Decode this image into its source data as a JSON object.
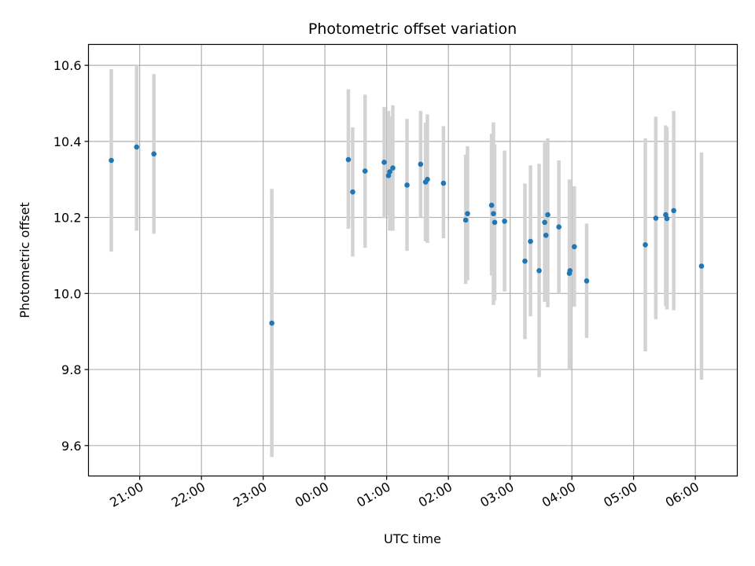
{
  "chart_data": {
    "type": "scatter",
    "title": "Photometric offset variation",
    "xlabel": "UTC time",
    "ylabel": "Photometric offset",
    "x_unit": "UTC clock time (hours past midnight; negative = previous evening)",
    "xlim": [
      -3.83,
      6.68
    ],
    "ylim": [
      9.52,
      10.655
    ],
    "x_ticks": [
      {
        "value": -3,
        "label": "21:00"
      },
      {
        "value": -2,
        "label": "22:00"
      },
      {
        "value": -1,
        "label": "23:00"
      },
      {
        "value": 0,
        "label": "00:00"
      },
      {
        "value": 1,
        "label": "01:00"
      },
      {
        "value": 2,
        "label": "02:00"
      },
      {
        "value": 3,
        "label": "03:00"
      },
      {
        "value": 4,
        "label": "04:00"
      },
      {
        "value": 5,
        "label": "05:00"
      },
      {
        "value": 6,
        "label": "06:00"
      }
    ],
    "y_ticks": [
      {
        "value": 9.6,
        "label": "9.6"
      },
      {
        "value": 9.8,
        "label": "9.8"
      },
      {
        "value": 10.0,
        "label": "10.0"
      },
      {
        "value": 10.2,
        "label": "10.2"
      },
      {
        "value": 10.4,
        "label": "10.4"
      },
      {
        "value": 10.6,
        "label": "10.6"
      }
    ],
    "grid": true,
    "colors": {
      "point": "#1f77b4",
      "errorbar": "#d3d3d3",
      "grid": "#b0b0b0",
      "axes": "#000000"
    },
    "points": [
      {
        "x": -3.46,
        "y": 10.35,
        "ylo": 10.11,
        "yhi": 10.59
      },
      {
        "x": -3.05,
        "y": 10.385,
        "ylo": 10.165,
        "yhi": 10.6
      },
      {
        "x": -2.77,
        "y": 10.367,
        "ylo": 10.157,
        "yhi": 10.577
      },
      {
        "x": -0.86,
        "y": 9.922,
        "ylo": 9.57,
        "yhi": 10.275
      },
      {
        "x": 0.38,
        "y": 10.352,
        "ylo": 10.17,
        "yhi": 10.537
      },
      {
        "x": 0.45,
        "y": 10.267,
        "ylo": 10.097,
        "yhi": 10.437
      },
      {
        "x": 0.65,
        "y": 10.322,
        "ylo": 10.12,
        "yhi": 10.523
      },
      {
        "x": 0.96,
        "y": 10.345,
        "ylo": 10.198,
        "yhi": 10.49
      },
      {
        "x": 1.03,
        "y": 10.31,
        "ylo": 10.205,
        "yhi": 10.48
      },
      {
        "x": 1.05,
        "y": 10.32,
        "ylo": 10.165,
        "yhi": 10.465
      },
      {
        "x": 1.1,
        "y": 10.33,
        "ylo": 10.165,
        "yhi": 10.495
      },
      {
        "x": 1.33,
        "y": 10.285,
        "ylo": 10.112,
        "yhi": 10.459
      },
      {
        "x": 1.55,
        "y": 10.34,
        "ylo": 10.2,
        "yhi": 10.48
      },
      {
        "x": 1.63,
        "y": 10.293,
        "ylo": 10.137,
        "yhi": 10.449
      },
      {
        "x": 1.66,
        "y": 10.3,
        "ylo": 10.133,
        "yhi": 10.471
      },
      {
        "x": 1.92,
        "y": 10.29,
        "ylo": 10.145,
        "yhi": 10.44
      },
      {
        "x": 2.28,
        "y": 10.193,
        "ylo": 10.025,
        "yhi": 10.365
      },
      {
        "x": 2.31,
        "y": 10.21,
        "ylo": 10.035,
        "yhi": 10.387
      },
      {
        "x": 2.7,
        "y": 10.232,
        "ylo": 10.047,
        "yhi": 10.42
      },
      {
        "x": 2.73,
        "y": 10.21,
        "ylo": 9.97,
        "yhi": 10.45
      },
      {
        "x": 2.75,
        "y": 10.187,
        "ylo": 9.982,
        "yhi": 10.392
      },
      {
        "x": 2.91,
        "y": 10.19,
        "ylo": 10.005,
        "yhi": 10.376
      },
      {
        "x": 3.24,
        "y": 10.085,
        "ylo": 9.88,
        "yhi": 10.289
      },
      {
        "x": 3.33,
        "y": 10.137,
        "ylo": 9.94,
        "yhi": 10.337
      },
      {
        "x": 3.47,
        "y": 10.06,
        "ylo": 9.78,
        "yhi": 10.341
      },
      {
        "x": 3.56,
        "y": 10.187,
        "ylo": 9.978,
        "yhi": 10.397
      },
      {
        "x": 3.58,
        "y": 10.153,
        "ylo": 9.99,
        "yhi": 10.317
      },
      {
        "x": 3.61,
        "y": 10.207,
        "ylo": 9.964,
        "yhi": 10.408
      },
      {
        "x": 3.79,
        "y": 10.175,
        "ylo": 10.0,
        "yhi": 10.35
      },
      {
        "x": 3.96,
        "y": 10.053,
        "ylo": 9.8,
        "yhi": 10.3
      },
      {
        "x": 3.97,
        "y": 10.06,
        "ylo": 9.825,
        "yhi": 10.295
      },
      {
        "x": 4.04,
        "y": 10.123,
        "ylo": 9.965,
        "yhi": 10.282
      },
      {
        "x": 4.24,
        "y": 10.033,
        "ylo": 9.883,
        "yhi": 10.184
      },
      {
        "x": 5.19,
        "y": 10.128,
        "ylo": 9.848,
        "yhi": 10.408
      },
      {
        "x": 5.36,
        "y": 10.198,
        "ylo": 9.932,
        "yhi": 10.465
      },
      {
        "x": 5.52,
        "y": 10.207,
        "ylo": 9.967,
        "yhi": 10.442
      },
      {
        "x": 5.54,
        "y": 10.197,
        "ylo": 9.958,
        "yhi": 10.437
      },
      {
        "x": 5.65,
        "y": 10.218,
        "ylo": 9.956,
        "yhi": 10.48
      },
      {
        "x": 6.1,
        "y": 10.072,
        "ylo": 9.773,
        "yhi": 10.371
      }
    ]
  }
}
